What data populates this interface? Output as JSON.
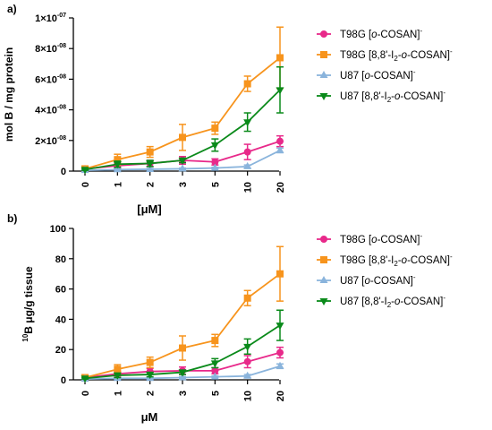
{
  "colors": {
    "pink": "#e8298a",
    "orange": "#f7941d",
    "lightblue": "#8ab4dc",
    "green": "#0a8a1a"
  },
  "chart_data": [
    {
      "type": "line",
      "panel_label": "a)",
      "categories": [
        "0",
        "1",
        "2",
        "3",
        "5",
        "10",
        "20"
      ],
      "ylabel": "mol B / mg protein",
      "xlabel": "[μM]",
      "ylim": [
        0,
        1e-07
      ],
      "yticks": [
        {
          "value": 0,
          "label": "0"
        },
        {
          "value": 2e-08,
          "mantissa": "2×10",
          "exp": "-08"
        },
        {
          "value": 4e-08,
          "mantissa": "4×10",
          "exp": "-08"
        },
        {
          "value": 6e-08,
          "mantissa": "6×10",
          "exp": "-08"
        },
        {
          "value": 8e-08,
          "mantissa": "8×10",
          "exp": "-08"
        },
        {
          "value": 1e-07,
          "mantissa": "1×10",
          "exp": "-07"
        }
      ],
      "series": [
        {
          "legend": {
            "prefix": "T98G [",
            "italic": "o",
            "suffix": "-COSAN]",
            "sup": "-"
          },
          "color": "pink",
          "marker": "circle",
          "values": [
            1.5e-09,
            3.5e-09,
            5e-09,
            7e-09,
            6e-09,
            1.25e-08,
            1.95e-08
          ],
          "errors": [
            5e-10,
            1.5e-09,
            2e-09,
            2.5e-09,
            2e-09,
            5e-09,
            3.5e-09
          ]
        },
        {
          "legend": {
            "prefix": "T98G [8,8'-I",
            "sub": "2",
            "mid": "-",
            "italic": "o",
            "suffix": "-COSAN]",
            "sup": "-"
          },
          "color": "orange",
          "marker": "square",
          "values": [
            1.5e-09,
            7.5e-09,
            1.25e-08,
            2.2e-08,
            2.8e-08,
            5.7e-08,
            7.4e-08
          ],
          "errors": [
            5e-10,
            3.5e-09,
            3.5e-09,
            8.5e-09,
            4e-09,
            5e-09,
            2e-08
          ]
        },
        {
          "legend": {
            "prefix": "U87  [",
            "italic": "o",
            "suffix": "-COSAN]",
            "sup": "-"
          },
          "color": "lightblue",
          "marker": "triangle-up",
          "values": [
            5e-10,
            1e-09,
            1.2e-09,
            1.5e-09,
            2e-09,
            3e-09,
            1.35e-08
          ],
          "errors": [
            3e-10,
            5e-10,
            5e-10,
            5e-10,
            5e-10,
            1e-09,
            1.5e-09
          ]
        },
        {
          "legend": {
            "prefix": "U87 [8,8'-I",
            "sub": "2",
            "mid": "-",
            "italic": "o",
            "suffix": "-COSAN]",
            "sup": "-"
          },
          "color": "green",
          "marker": "triangle-down",
          "values": [
            1e-09,
            4.5e-09,
            5e-09,
            7e-09,
            1.7e-08,
            3.2e-08,
            5.3e-08
          ],
          "errors": [
            5e-10,
            2e-09,
            2e-09,
            1.5e-09,
            4e-09,
            6e-09,
            1.5e-08
          ]
        }
      ]
    },
    {
      "type": "line",
      "panel_label": "b)",
      "categories": [
        "0",
        "1",
        "2",
        "3",
        "5",
        "10",
        "20"
      ],
      "ylabel_sup": "10",
      "ylabel": "B μg/g tissue",
      "xlabel": "μM",
      "ylim": [
        0,
        100
      ],
      "yticks": [
        {
          "value": 0,
          "label": "0"
        },
        {
          "value": 20,
          "label": "20"
        },
        {
          "value": 40,
          "label": "40"
        },
        {
          "value": 60,
          "label": "60"
        },
        {
          "value": 80,
          "label": "80"
        },
        {
          "value": 100,
          "label": "100"
        }
      ],
      "series": [
        {
          "legend": {
            "prefix": "T98G [",
            "italic": "o",
            "suffix": "-COSAN]",
            "sup": "-"
          },
          "color": "pink",
          "marker": "circle",
          "values": [
            1.5,
            4,
            5.5,
            6,
            6,
            12,
            18
          ],
          "errors": [
            0.5,
            1.5,
            2,
            2.5,
            2,
            4,
            3.5
          ]
        },
        {
          "legend": {
            "prefix": "T98G [8,8'-I",
            "sub": "2",
            "mid": "-",
            "italic": "o",
            "suffix": "-COSAN]",
            "sup": "-"
          },
          "color": "orange",
          "marker": "square",
          "values": [
            1.5,
            7,
            11.5,
            21,
            26,
            54,
            70
          ],
          "errors": [
            0.5,
            3,
            3.5,
            8,
            4,
            5,
            18
          ]
        },
        {
          "legend": {
            "prefix": "U87  [",
            "italic": "o",
            "suffix": "-COSAN]",
            "sup": "-"
          },
          "color": "lightblue",
          "marker": "triangle-up",
          "values": [
            0.5,
            1,
            1,
            1.5,
            2,
            2.5,
            9
          ],
          "errors": [
            0.3,
            0.5,
            0.5,
            0.5,
            0.5,
            1,
            1.5
          ]
        },
        {
          "legend": {
            "prefix": "U87 [8,8'-I",
            "sub": "2",
            "mid": "-",
            "italic": "o",
            "suffix": "-COSAN]",
            "sup": "-"
          },
          "color": "green",
          "marker": "triangle-down",
          "values": [
            1,
            3,
            3.5,
            5,
            11,
            22,
            36
          ],
          "errors": [
            0.5,
            1.5,
            1.5,
            1.5,
            3,
            5,
            10
          ]
        }
      ]
    }
  ]
}
